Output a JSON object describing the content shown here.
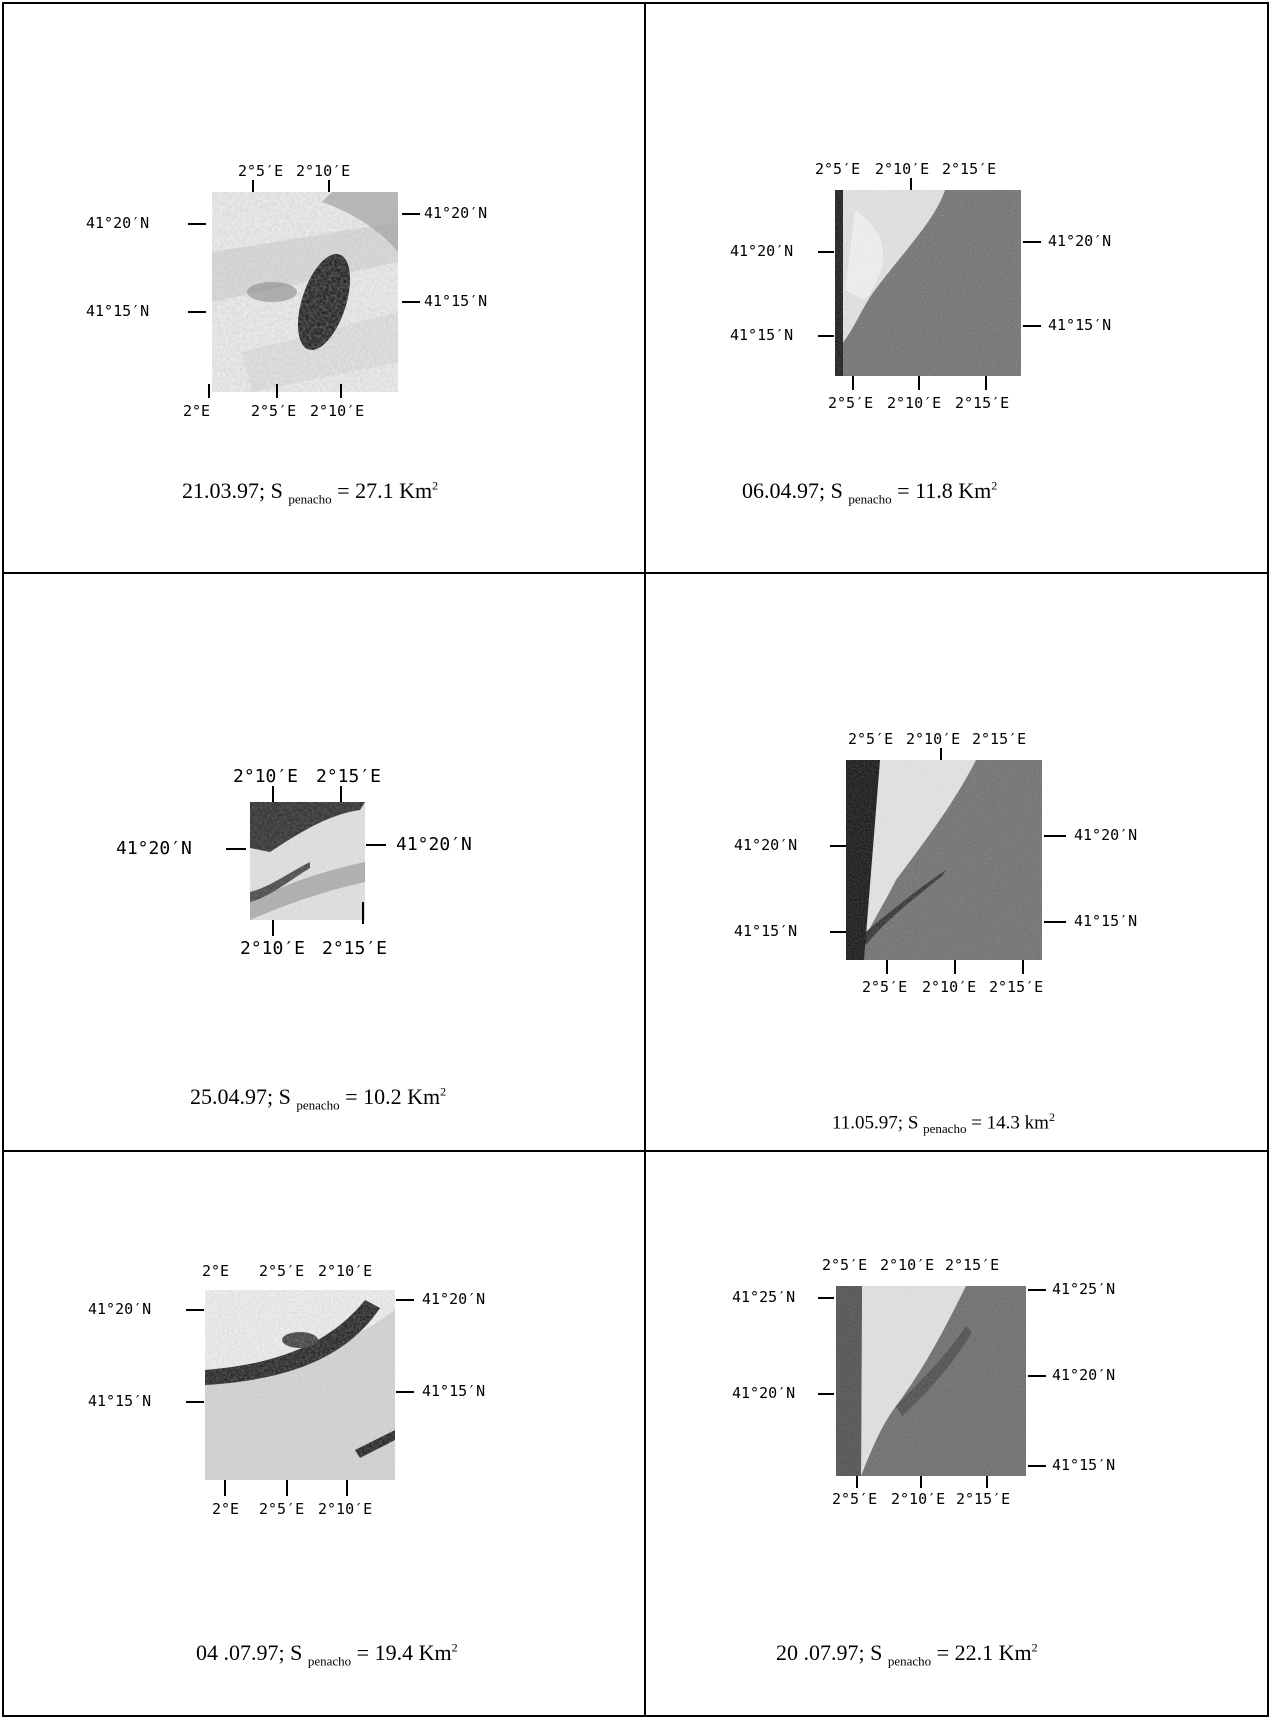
{
  "panels": [
    {
      "caption": {
        "date": "21.03.97; S ",
        "sub": "penacho",
        "rest": " = 27.1 Km",
        "sup": "2"
      },
      "top_labels": [
        "2°5′E",
        "2°10′E"
      ],
      "bottom_labels": [
        "2°E",
        "2°5′E",
        "2°10′E"
      ],
      "left_labels": [
        "41°20′N",
        "41°15′N"
      ],
      "right_labels": [
        "41°20′N",
        "41°15′N"
      ],
      "image": "light-plume-dark-core"
    },
    {
      "caption": {
        "date": "06.04.97; S ",
        "sub": "penacho",
        "rest": " = 11.8 Km",
        "sup": "2"
      },
      "top_labels": [
        "2°5′E",
        "2°10′E",
        "2°15′E"
      ],
      "bottom_labels": [
        "2°5′E",
        "2°10′E",
        "2°15′E"
      ],
      "left_labels": [
        "41°20′N",
        "41°15′N"
      ],
      "right_labels": [
        "41°20′N",
        "41°15′N"
      ],
      "image": "grey-sea-white-land"
    },
    {
      "caption": {
        "date": "25.04.97; S ",
        "sub": "penacho",
        "rest": " = 10.2 Km",
        "sup": "2"
      },
      "top_labels": [
        "2°10′E",
        "2°15′E"
      ],
      "bottom_labels": [
        "2°10′E",
        "2°15′E"
      ],
      "left_labels": [
        "41°20′N"
      ],
      "right_labels": [
        "41°20′N"
      ],
      "image": "light-small-dark-band"
    },
    {
      "caption": {
        "date": "11.05.97; S ",
        "sub": "penacho",
        "rest": " = 14.3 km",
        "sup": "2"
      },
      "top_labels": [
        "2°5′E",
        "2°10′E",
        "2°15′E"
      ],
      "bottom_labels": [
        "2°5′E",
        "2°10′E",
        "2°15′E"
      ],
      "left_labels": [
        "41°20′N",
        "41°15′N"
      ],
      "right_labels": [
        "41°20′N",
        "41°15′N"
      ],
      "image": "grey-sea-white-land"
    },
    {
      "caption": {
        "date": "04 .07.97; S ",
        "sub": "penacho",
        "rest": " = 19.4 Km",
        "sup": "2"
      },
      "top_labels": [
        "2°E",
        "2°5′E",
        "2°10′E"
      ],
      "bottom_labels": [
        "2°E",
        "2°5′E",
        "2°10′E"
      ],
      "left_labels": [
        "41°20′N",
        "41°15′N"
      ],
      "right_labels": [
        "41°20′N",
        "41°15′N"
      ],
      "image": "light-plume-dark-streak"
    },
    {
      "caption": {
        "date": "20 .07.97; S ",
        "sub": "penacho",
        "rest": " = 22.1 Km",
        "sup": "2"
      },
      "top_labels": [
        "2°5′E",
        "2°10′E",
        "2°15′E"
      ],
      "bottom_labels": [
        "2°5′E",
        "2°10′E",
        "2°15′E"
      ],
      "left_labels": [
        "41°25′N",
        "41°20′N"
      ],
      "right_labels": [
        "41°25′N",
        "41°20′N",
        "41°15′N"
      ],
      "image": "grey-sea-white-land"
    }
  ]
}
